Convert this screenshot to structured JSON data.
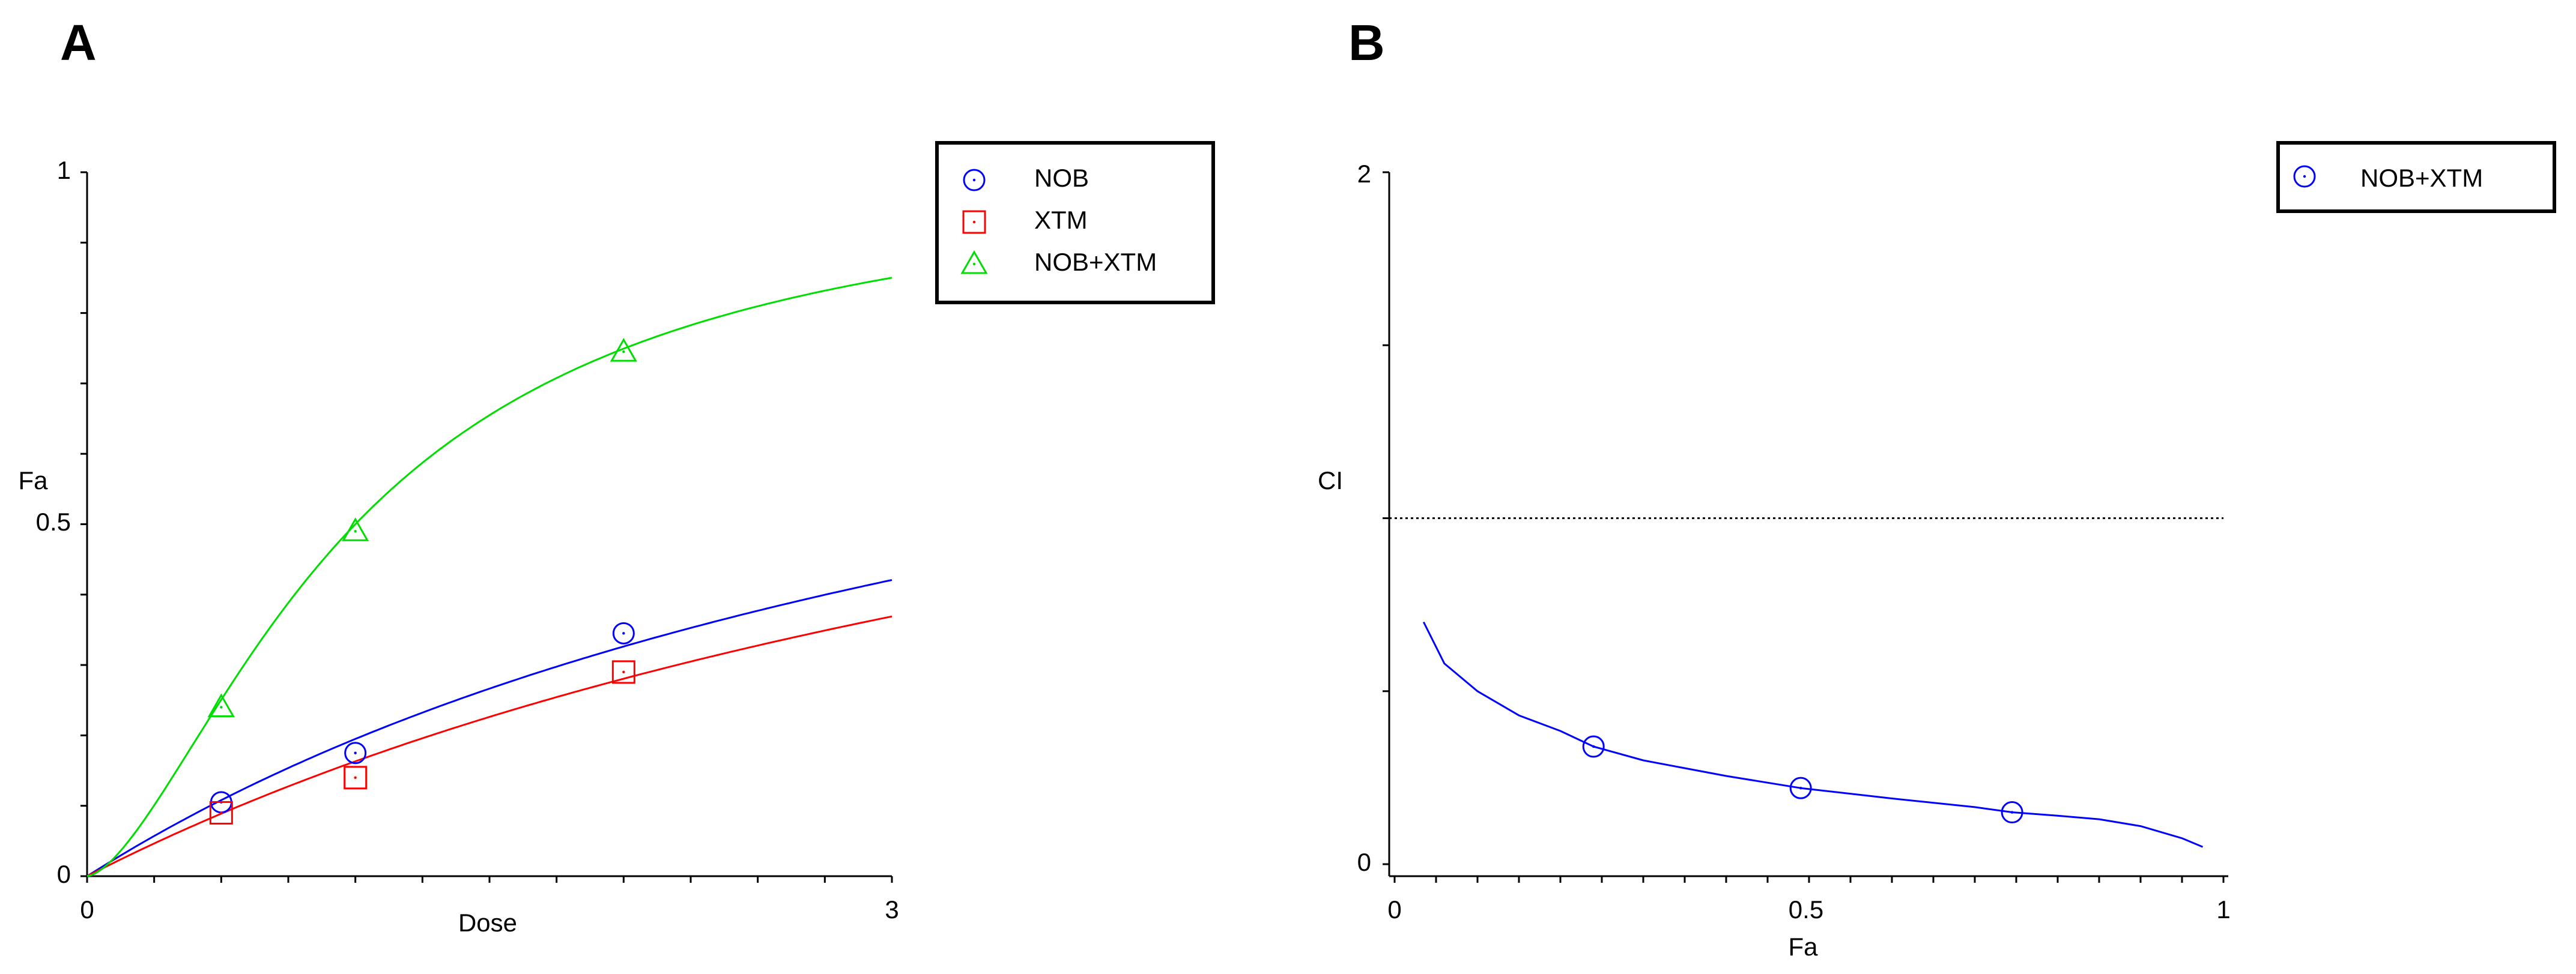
{
  "chart_data": [
    {
      "panel": "A",
      "type": "line",
      "title": "",
      "xlabel": "Dose",
      "ylabel": "Fa",
      "xlim": [
        0,
        3
      ],
      "ylim": [
        0,
        1
      ],
      "x_tick_labels": [
        "0",
        "3"
      ],
      "y_tick_labels": [
        "0",
        "0.5",
        "1"
      ],
      "grid": false,
      "legend_position": "top-right",
      "series": [
        {
          "name": "NOB",
          "color": "#0000ff",
          "marker": "circle",
          "points": [
            [
              0.5,
              0.105
            ],
            [
              1.0,
              0.175
            ],
            [
              2.0,
              0.345
            ]
          ],
          "fit": {
            "dm": 4.13,
            "m": 1.0
          }
        },
        {
          "name": "XTM",
          "color": "#ff0000",
          "marker": "square",
          "points": [
            [
              0.5,
              0.09
            ],
            [
              1.0,
              0.14
            ],
            [
              2.0,
              0.29
            ]
          ],
          "fit": {
            "dm": 5.13,
            "m": 1.0
          }
        },
        {
          "name": "NOB+XTM",
          "color": "#00dd00",
          "marker": "triangle",
          "points": [
            [
              0.5,
              0.24
            ],
            [
              1.0,
              0.49
            ],
            [
              2.0,
              0.745
            ]
          ],
          "fit": {
            "dm": 1.0,
            "m": 1.58
          }
        }
      ]
    },
    {
      "panel": "B",
      "type": "line",
      "title": "",
      "xlabel": "Fa",
      "ylabel": "CI",
      "xlim": [
        0,
        1
      ],
      "ylim": [
        0,
        2
      ],
      "x_tick_labels": [
        "0",
        "0.5",
        "1"
      ],
      "y_tick_labels": [
        "0",
        "2"
      ],
      "grid": false,
      "reference_line_y": 1.0,
      "legend_position": "top-right",
      "series": [
        {
          "name": "NOB+XTM",
          "color": "#0000ff",
          "marker": "circle",
          "points": [
            [
              0.24,
              0.34
            ],
            [
              0.49,
              0.22
            ],
            [
              0.745,
              0.15
            ]
          ],
          "curve": [
            [
              0.035,
              0.7
            ],
            [
              0.06,
              0.58
            ],
            [
              0.1,
              0.5
            ],
            [
              0.15,
              0.43
            ],
            [
              0.2,
              0.385
            ],
            [
              0.24,
              0.34
            ],
            [
              0.3,
              0.3
            ],
            [
              0.4,
              0.255
            ],
            [
              0.49,
              0.22
            ],
            [
              0.6,
              0.19
            ],
            [
              0.7,
              0.165
            ],
            [
              0.745,
              0.15
            ],
            [
              0.8,
              0.14
            ],
            [
              0.85,
              0.13
            ],
            [
              0.9,
              0.11
            ],
            [
              0.95,
              0.075
            ],
            [
              0.975,
              0.05
            ]
          ]
        }
      ]
    }
  ]
}
